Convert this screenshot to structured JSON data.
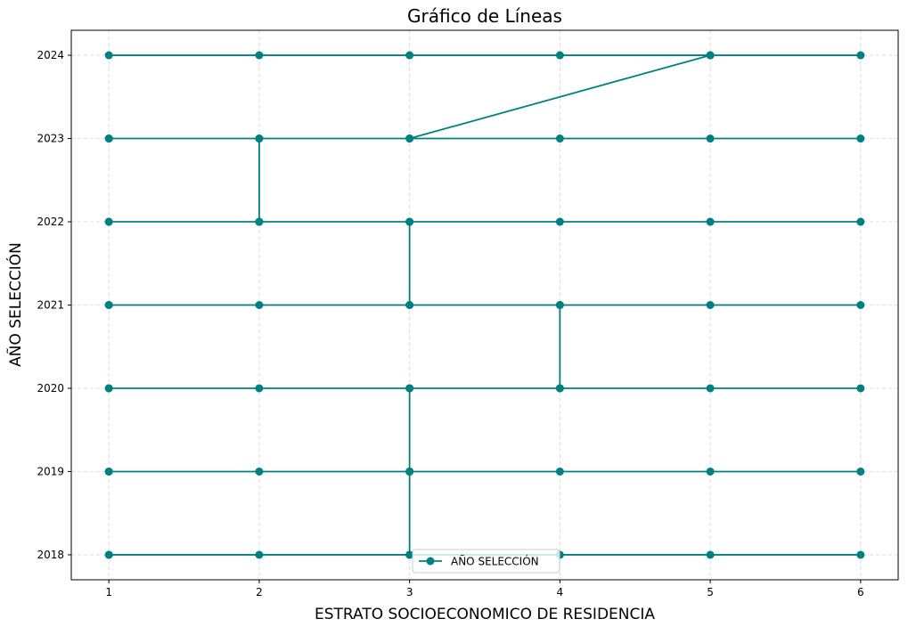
{
  "chart_data": {
    "type": "line",
    "title": "Gráfico de Líneas",
    "xlabel": "ESTRATO SOCIOECONOMICO DE RESIDENCIA",
    "ylabel": "AÑO SELECCIÓN",
    "xlim": [
      0.75,
      6.25
    ],
    "ylim": [
      2017.7,
      2024.3
    ],
    "x_ticks": [
      1,
      2,
      3,
      4,
      5,
      6
    ],
    "y_ticks": [
      2018,
      2019,
      2020,
      2021,
      2022,
      2023,
      2024
    ],
    "grid": true,
    "legend_position": "bottom-center",
    "series": [
      {
        "name": "AÑO SELECCIÓN",
        "color": "#008080",
        "marker": "circle",
        "points": [
          [
            1,
            2018
          ],
          [
            2,
            2018
          ],
          [
            3,
            2018
          ],
          [
            4,
            2018
          ],
          [
            5,
            2018
          ],
          [
            6,
            2018
          ],
          [
            1,
            2018
          ],
          [
            3,
            2018
          ],
          [
            3,
            2019
          ],
          [
            1,
            2019
          ],
          [
            2,
            2019
          ],
          [
            3,
            2019
          ],
          [
            4,
            2019
          ],
          [
            5,
            2019
          ],
          [
            6,
            2019
          ],
          [
            1,
            2019
          ],
          [
            3,
            2019
          ],
          [
            3,
            2020
          ],
          [
            1,
            2020
          ],
          [
            2,
            2020
          ],
          [
            3,
            2020
          ],
          [
            4,
            2020
          ],
          [
            5,
            2020
          ],
          [
            6,
            2020
          ],
          [
            1,
            2020
          ],
          [
            4,
            2020
          ],
          [
            4,
            2021
          ],
          [
            1,
            2021
          ],
          [
            2,
            2021
          ],
          [
            3,
            2021
          ],
          [
            4,
            2021
          ],
          [
            5,
            2021
          ],
          [
            6,
            2021
          ],
          [
            1,
            2021
          ],
          [
            3,
            2021
          ],
          [
            3,
            2022
          ],
          [
            1,
            2022
          ],
          [
            2,
            2022
          ],
          [
            3,
            2022
          ],
          [
            4,
            2022
          ],
          [
            5,
            2022
          ],
          [
            6,
            2022
          ],
          [
            1,
            2022
          ],
          [
            2,
            2022
          ],
          [
            2,
            2023
          ],
          [
            1,
            2023
          ],
          [
            2,
            2023
          ],
          [
            3,
            2023
          ],
          [
            4,
            2023
          ],
          [
            5,
            2023
          ],
          [
            6,
            2023
          ],
          [
            1,
            2023
          ],
          [
            3,
            2023
          ],
          [
            5,
            2024
          ],
          [
            1,
            2024
          ],
          [
            2,
            2024
          ],
          [
            3,
            2024
          ],
          [
            4,
            2024
          ],
          [
            5,
            2024
          ],
          [
            6,
            2024
          ]
        ]
      }
    ]
  }
}
